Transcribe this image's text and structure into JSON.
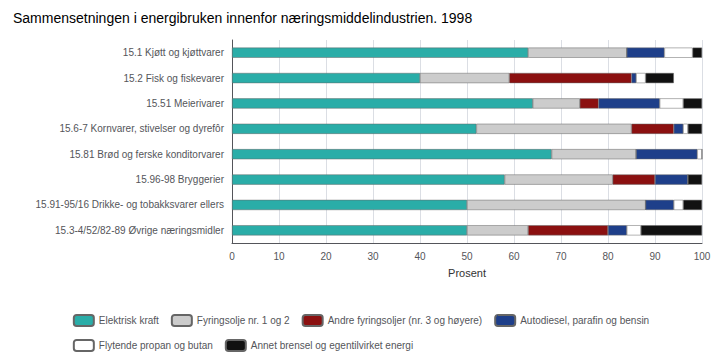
{
  "chart_data": {
    "type": "bar",
    "orientation": "horizontal",
    "stacked": true,
    "title": "Sammensetningen i energibruken innenfor næringsmiddelindustrien. 1998",
    "categories": [
      "15.1 Kjøtt og kjøttvarer",
      "15.2 Fisk og fiskevarer",
      "15.51 Meierivarer",
      "15.6-7 Kornvarer, stivelser og dyrefôr",
      "15.81 Brød og ferske konditorvarer",
      "15.96-98 Bryggerier",
      "15.91-95/16 Drikke- og tobakksvarer ellers",
      "15.3-4/52/82-89 Øvrige næringsmidler"
    ],
    "series": [
      {
        "name": "Elektrisk kraft",
        "color": "#2AADA8",
        "values": [
          63,
          40,
          64,
          52,
          68,
          58,
          50,
          50
        ]
      },
      {
        "name": "Fyringsolje nr. 1 og 2",
        "color": "#CCCCCC",
        "values": [
          21,
          19,
          10,
          33,
          18,
          23,
          38,
          13
        ]
      },
      {
        "name": "Andre fyringsoljer (nr. 3 og høyere)",
        "color": "#8B1010",
        "values": [
          0,
          26,
          4,
          9,
          0,
          9,
          0,
          17
        ]
      },
      {
        "name": "Autodiesel, parafin og bensin",
        "color": "#1E3F8A",
        "values": [
          8,
          1,
          13,
          2,
          13,
          7,
          6,
          4
        ]
      },
      {
        "name": "Flytende propan og butan",
        "color": "#FFFFFF",
        "values": [
          6,
          2,
          5,
          1,
          1,
          0,
          2,
          3
        ]
      },
      {
        "name": "Annet brensel og egentilvirket energi",
        "color": "#111111",
        "values": [
          2,
          6,
          4,
          3,
          0,
          3,
          4,
          13
        ]
      }
    ],
    "xlabel": "Prosent",
    "xlim": [
      0,
      100
    ],
    "xticks": [
      0,
      10,
      20,
      30,
      40,
      50,
      60,
      70,
      80,
      90,
      100
    ],
    "grid": true,
    "legend": "bottom"
  }
}
